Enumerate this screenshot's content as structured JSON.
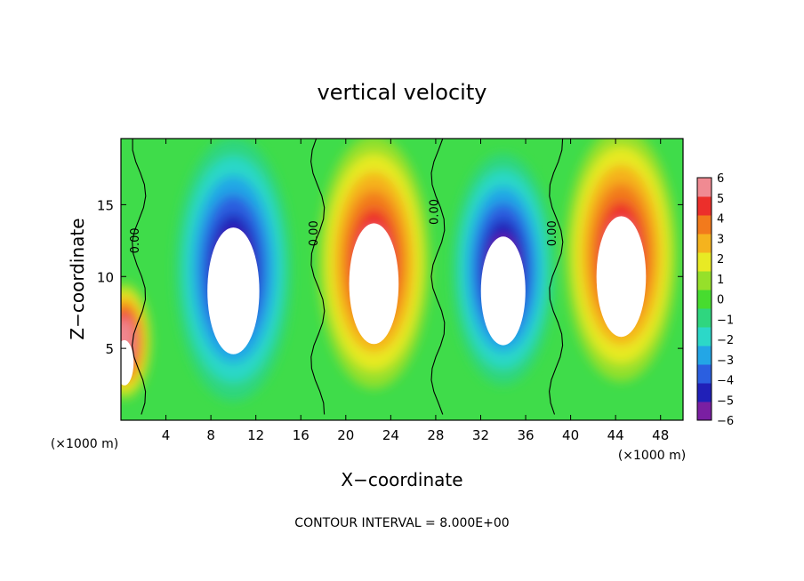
{
  "chart_data": {
    "type": "heatmap",
    "title": "vertical velocity",
    "xlabel": "X−coordinate",
    "ylabel": "Z−coordinate",
    "x_unit_left": "(×1000 m)",
    "x_unit_right": "(×1000 m)",
    "footer": "CONTOUR INTERVAL = 8.000E+00",
    "xlim": [
      0,
      50
    ],
    "ylim": [
      0,
      19.6
    ],
    "x_ticks": [
      4,
      8,
      12,
      16,
      20,
      24,
      28,
      32,
      36,
      40,
      44,
      48
    ],
    "y_ticks": [
      5,
      10,
      15
    ],
    "colorbar": {
      "range": [
        -6,
        6
      ],
      "ticks": [
        6,
        5,
        4,
        3,
        2,
        1,
        0,
        -1,
        -2,
        -3,
        -4,
        -5,
        -6
      ],
      "tick_labels": [
        "6",
        "5",
        "4",
        "3",
        "2",
        "1",
        "0",
        "−1",
        "−2",
        "−3",
        "−4",
        "−5",
        "−6"
      ],
      "colors": [
        "#7a1fa2",
        "#2020b8",
        "#2b5fe0",
        "#23a6e6",
        "#2cd8c8",
        "#2fd67f",
        "#47dc2f",
        "#96e02a",
        "#e8ea24",
        "#f5b31e",
        "#f27a1c",
        "#ec2f2b",
        "#f08a92"
      ]
    },
    "contour_labels": [
      {
        "x": 1.6,
        "z": 12.5,
        "text": "0.00"
      },
      {
        "x": 17.5,
        "z": 13.0,
        "text": "0.00"
      },
      {
        "x": 28.2,
        "z": 14.5,
        "text": "0.00"
      },
      {
        "x": 38.7,
        "z": 13.0,
        "text": "0.00"
      }
    ],
    "cells": [
      {
        "x": 10,
        "z": 10.5,
        "w": 4.2,
        "value": -6,
        "label": "downdraft cell"
      },
      {
        "x": 22.5,
        "z": 11.0,
        "w": 4.0,
        "value": 6,
        "label": "updraft cell"
      },
      {
        "x": 34.0,
        "z": 10.5,
        "w": 3.6,
        "value": -6,
        "label": "downdraft cell"
      },
      {
        "x": 44.5,
        "z": 11.5,
        "w": 4.0,
        "value": 6,
        "label": "updraft cell"
      },
      {
        "x": 0.3,
        "z": 5.5,
        "w": 1.5,
        "value": 5,
        "label": "edge updraft"
      }
    ]
  }
}
